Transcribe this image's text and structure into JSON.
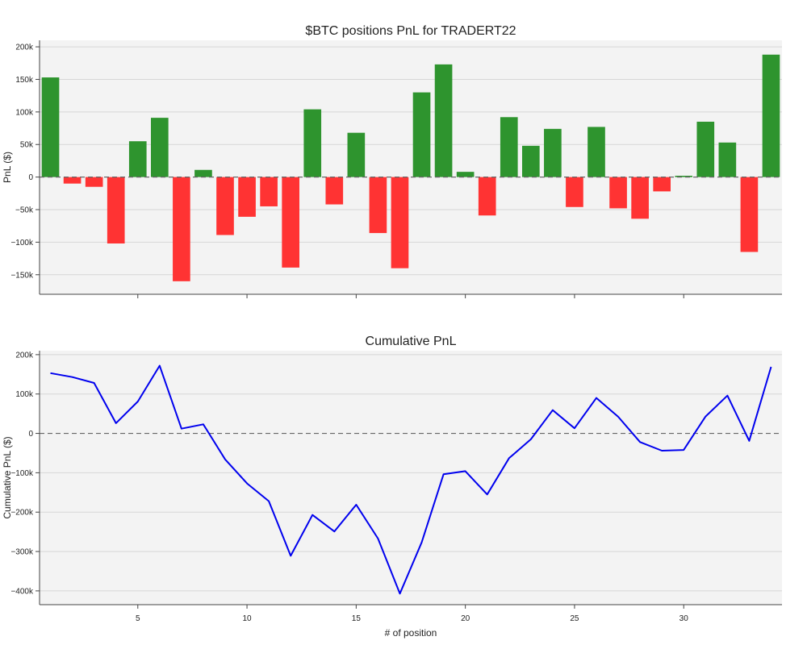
{
  "chart_data": [
    {
      "type": "bar",
      "title": "$BTC positions PnL for TRADERT22",
      "ylabel": "PnL ($)",
      "xlabel": "",
      "x": [
        1,
        2,
        3,
        4,
        5,
        6,
        7,
        8,
        9,
        10,
        11,
        12,
        13,
        14,
        15,
        16,
        17,
        18,
        19,
        20,
        21,
        22,
        23,
        24,
        25,
        26,
        27,
        28,
        29,
        30,
        31,
        32,
        33,
        34
      ],
      "values": [
        153000,
        -10000,
        -15000,
        -102000,
        55000,
        91000,
        -160000,
        11000,
        -89000,
        -61000,
        -45000,
        -139000,
        104000,
        -42000,
        68000,
        -86000,
        -140000,
        130000,
        173000,
        8000,
        -59000,
        92000,
        48000,
        74000,
        -46000,
        77000,
        -48000,
        -64000,
        -22000,
        2000,
        85000,
        53000,
        -115000,
        188000
      ],
      "xlim": [
        0.5,
        34.5
      ],
      "ylim": [
        -180000,
        210000
      ],
      "yticks": [
        -150000,
        -100000,
        -50000,
        0,
        50000,
        100000,
        150000,
        200000
      ],
      "yticklabels": [
        "−150k",
        "−100k",
        "−50k",
        "0",
        "50k",
        "100k",
        "150k",
        "200k"
      ],
      "colors": {
        "positive": "#2e942e",
        "negative": "#ff3333"
      },
      "zero_line": "dashed",
      "grid": true
    },
    {
      "type": "line",
      "title": "Cumulative PnL",
      "ylabel": "Cumulative PnL ($)",
      "xlabel": "# of position",
      "x": [
        1,
        2,
        3,
        4,
        5,
        6,
        7,
        8,
        9,
        10,
        11,
        12,
        13,
        14,
        15,
        16,
        17,
        18,
        19,
        20,
        21,
        22,
        23,
        24,
        25,
        26,
        27,
        28,
        29,
        30,
        31,
        32,
        33,
        34
      ],
      "values": [
        153000,
        143000,
        128000,
        26000,
        81000,
        172000,
        12000,
        23000,
        -66000,
        -127000,
        -172000,
        -311000,
        -207000,
        -249000,
        -181000,
        -267000,
        -407000,
        -277000,
        -104000,
        -96000,
        -155000,
        -63000,
        -15000,
        59000,
        13000,
        90000,
        42000,
        -22000,
        -44000,
        -42000,
        43000,
        96000,
        -19000,
        169000
      ],
      "xlim": [
        0.5,
        34.5
      ],
      "ylim": [
        -435000,
        210000
      ],
      "xticks": [
        5,
        10,
        15,
        20,
        25,
        30
      ],
      "xticklabels": [
        "5",
        "10",
        "15",
        "20",
        "25",
        "30"
      ],
      "yticks": [
        -400000,
        -300000,
        -200000,
        -100000,
        0,
        100000,
        200000
      ],
      "yticklabels": [
        "−400k",
        "−300k",
        "−200k",
        "−100k",
        "0",
        "100k",
        "200k"
      ],
      "line_color": "#0000ee",
      "zero_line": "dashed",
      "grid": true
    }
  ]
}
